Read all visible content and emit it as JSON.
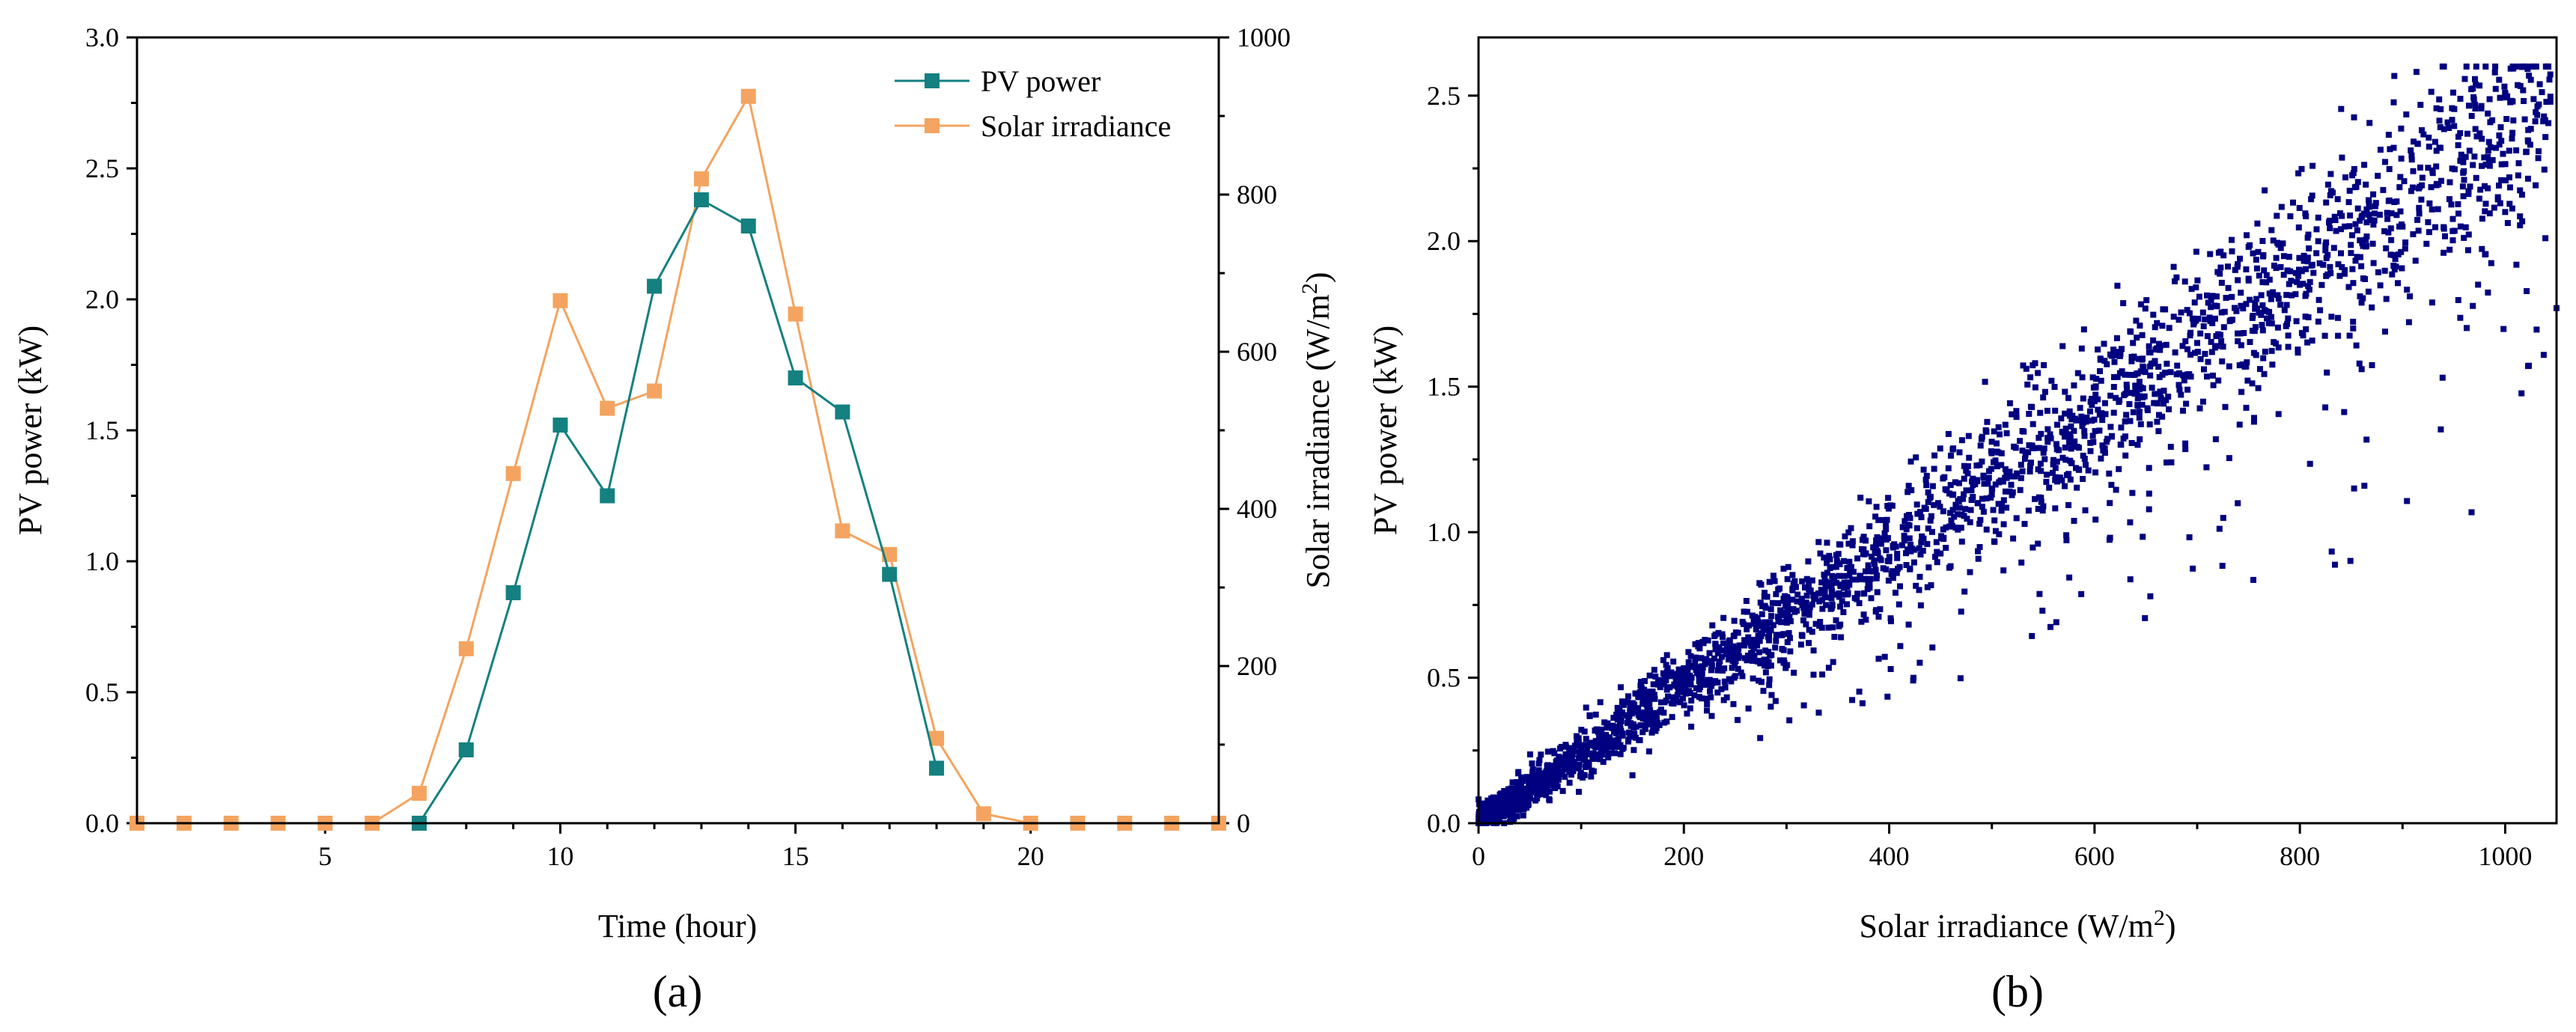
{
  "figure": {
    "panels": [
      "(a)",
      "(b)"
    ]
  },
  "chart_data": [
    {
      "type": "line",
      "panel_label": "(a)",
      "xlabel": "Time (hour)",
      "ylabel": "PV power (kW)",
      "y2label": "Solar irradiance (W/m²)",
      "y2label_base": "Solar irradiance (W/m",
      "y2label_sup": "2",
      "y2label_end": ")",
      "xlim": [
        1,
        24
      ],
      "ylim": [
        0,
        3.0
      ],
      "y2lim": [
        0,
        1000
      ],
      "x_ticks": [
        5,
        10,
        15,
        20
      ],
      "y_ticks": [
        "0.0",
        "0.5",
        "1.0",
        "1.5",
        "2.0",
        "2.5",
        "3.0"
      ],
      "y2_ticks": [
        "0",
        "200",
        "400",
        "600",
        "800",
        "1000"
      ],
      "legend_position": "top-right",
      "series": [
        {
          "name": "PV power",
          "axis": "left",
          "color": "#148080",
          "x": [
            7,
            8,
            9,
            10,
            11,
            12,
            13,
            14,
            15,
            16,
            17,
            18
          ],
          "values": [
            0.0,
            0.28,
            0.88,
            1.52,
            1.25,
            2.05,
            2.38,
            2.28,
            1.7,
            1.57,
            0.95,
            0.21
          ]
        },
        {
          "name": "Solar irradiance",
          "axis": "right",
          "color": "#F4A460",
          "x": [
            1,
            2,
            3,
            4,
            5,
            6,
            7,
            8,
            9,
            10,
            11,
            12,
            13,
            14,
            15,
            16,
            17,
            18,
            19,
            20,
            21,
            22,
            23,
            24
          ],
          "values": [
            0,
            0,
            0,
            0,
            0,
            0,
            38,
            222,
            445,
            665,
            528,
            550,
            820,
            925,
            648,
            372,
            342,
            108,
            12,
            0,
            0,
            0,
            0,
            0
          ]
        }
      ]
    },
    {
      "type": "scatter",
      "panel_label": "(b)",
      "xlabel": "Solar irradiance (W/m²)",
      "xlabel_base": "Solar irradiance (W/m",
      "xlabel_sup": "2",
      "xlabel_end": ")",
      "ylabel": "PV power (kW)",
      "xlim": [
        0,
        1050
      ],
      "ylim": [
        0,
        2.7
      ],
      "x_ticks": [
        "0",
        "200",
        "400",
        "600",
        "800",
        "1000"
      ],
      "y_ticks": [
        "0.0",
        "0.5",
        "1.0",
        "1.5",
        "2.0",
        "2.5"
      ],
      "color": "#000080",
      "note": "Dense point cloud (~3000 points) with PV power rising roughly linearly with irradiance (~0.0024 kW per W/m²) and spread widening at higher irradiance.",
      "samples": {
        "x": [
          0,
          50,
          100,
          200,
          300,
          400,
          500,
          600,
          700,
          800,
          900,
          990,
          1000,
          1050
        ],
        "values": [
          0.0,
          0.12,
          0.25,
          0.45,
          0.7,
          0.9,
          1.15,
          1.45,
          1.65,
          1.85,
          2.05,
          2.58,
          2.1,
          1.77
        ]
      }
    }
  ]
}
